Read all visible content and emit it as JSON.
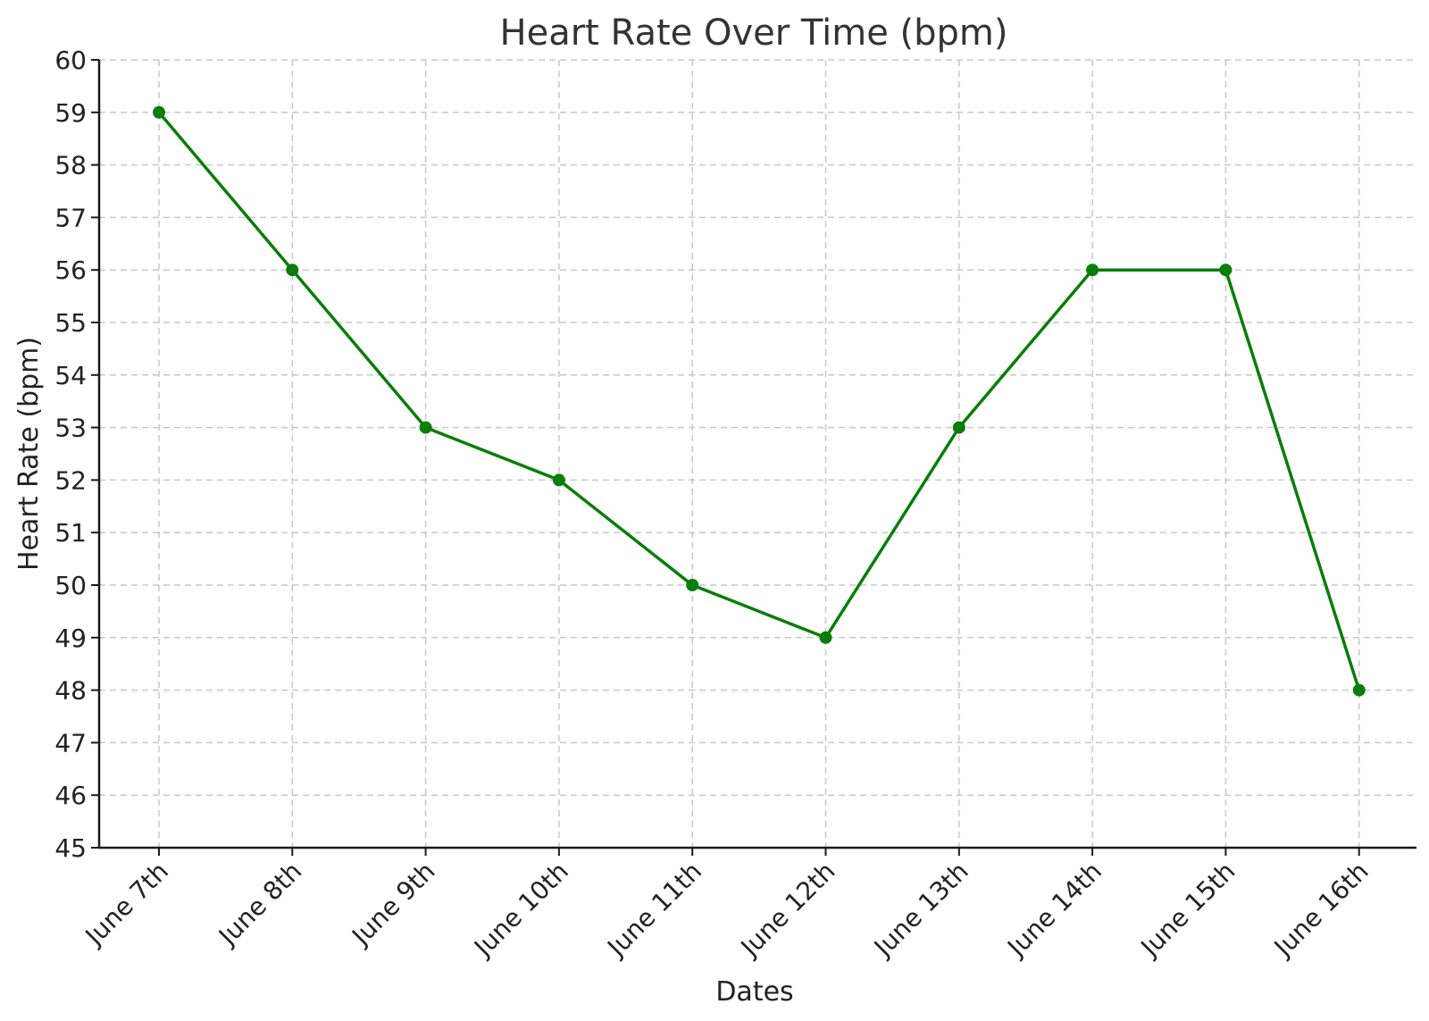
{
  "chart_data": {
    "type": "line",
    "title": "Heart Rate Over Time (bpm)",
    "xlabel": "Dates",
    "ylabel": "Heart Rate (bpm)",
    "categories": [
      "June 7th",
      "June 8th",
      "June 9th",
      "June 10th",
      "June 11th",
      "June 12th",
      "June 13th",
      "June 14th",
      "June 15th",
      "June 16th"
    ],
    "series": [
      {
        "values": [
          59,
          56,
          53,
          52,
          50,
          49,
          53,
          56,
          56,
          48
        ],
        "color": "#0a7d0a",
        "marker": "circle"
      }
    ],
    "ylim": [
      45,
      60
    ],
    "yticks": [
      45,
      46,
      47,
      48,
      49,
      50,
      51,
      52,
      53,
      54,
      55,
      56,
      57,
      58,
      59,
      60
    ],
    "grid": true,
    "legend": "none"
  }
}
